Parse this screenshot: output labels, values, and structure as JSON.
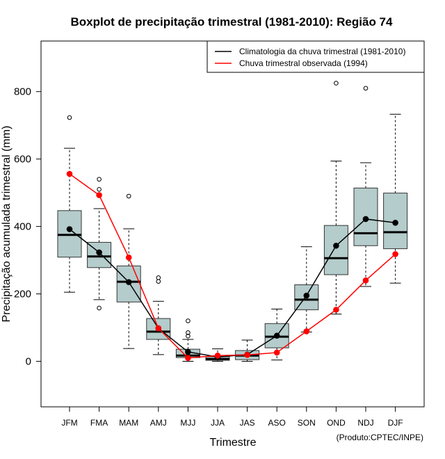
{
  "chart_data": {
    "type": "boxplot",
    "title": "Boxplot de precipitação trimestral (1981-2010): Região 74",
    "xlabel": "Trimestre",
    "ylabel": "Precipitação acumulada trimestral (mm)",
    "credit": "(Produto:CPTEC/INPE)",
    "ylim": [
      -135,
      950
    ],
    "yticks": [
      0,
      200,
      400,
      600,
      800
    ],
    "categories": [
      "JFM",
      "FMA",
      "MAM",
      "AMJ",
      "MJJ",
      "JJA",
      "JAS",
      "ASO",
      "SON",
      "OND",
      "NDJ",
      "DJF"
    ],
    "boxes": [
      {
        "whisker_low": 205,
        "q1": 309,
        "median": 375,
        "q3": 447,
        "whisker_high": 632,
        "outliers": [
          723
        ]
      },
      {
        "whisker_low": 183,
        "q1": 278,
        "median": 311,
        "q3": 353,
        "whisker_high": 453,
        "outliers": [
          158,
          510,
          540
        ]
      },
      {
        "whisker_low": 38,
        "q1": 176,
        "median": 236,
        "q3": 283,
        "whisker_high": 393,
        "outliers": [
          490
        ]
      },
      {
        "whisker_low": 20,
        "q1": 65,
        "median": 88,
        "q3": 127,
        "whisker_high": 178,
        "outliers": [
          237,
          248
        ]
      },
      {
        "whisker_low": 0,
        "q1": 11,
        "median": 17,
        "q3": 36,
        "whisker_high": 65,
        "outliers": [
          75,
          85,
          120
        ]
      },
      {
        "whisker_low": 0,
        "q1": 3,
        "median": 7,
        "q3": 14,
        "whisker_high": 37,
        "outliers": []
      },
      {
        "whisker_low": 0,
        "q1": 5,
        "median": 17,
        "q3": 32,
        "whisker_high": 63,
        "outliers": []
      },
      {
        "whisker_low": 4,
        "q1": 40,
        "median": 73,
        "q3": 112,
        "whisker_high": 155,
        "outliers": []
      },
      {
        "whisker_low": 87,
        "q1": 153,
        "median": 183,
        "q3": 227,
        "whisker_high": 340,
        "outliers": []
      },
      {
        "whisker_low": 140,
        "q1": 257,
        "median": 306,
        "q3": 403,
        "whisker_high": 594,
        "outliers": [
          825
        ]
      },
      {
        "whisker_low": 222,
        "q1": 343,
        "median": 380,
        "q3": 514,
        "whisker_high": 589,
        "outliers": [
          810
        ]
      },
      {
        "whisker_low": 232,
        "q1": 334,
        "median": 383,
        "q3": 499,
        "whisker_high": 733,
        "outliers": []
      }
    ],
    "series": [
      {
        "name": "Climatologia da chuva trimestral (1981-2010)",
        "color": "#000000",
        "values": [
          392,
          323,
          235,
          98,
          28,
          13,
          20,
          76,
          195,
          343,
          422,
          411
        ]
      },
      {
        "name": "Chuva trimestral observada (1994)",
        "color": "#ff0000",
        "values": [
          556,
          493,
          308,
          98,
          10,
          17,
          19,
          26,
          89,
          153,
          240,
          318
        ]
      }
    ],
    "box_fill": "#b4cccb",
    "legend_position": "top-right"
  }
}
